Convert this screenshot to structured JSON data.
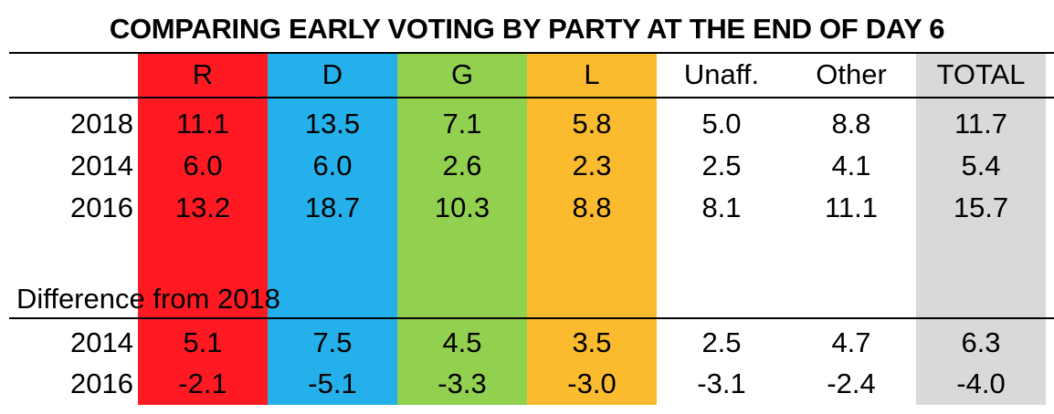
{
  "chart_data": {
    "type": "table",
    "title": "COMPARING EARLY VOTING BY PARTY AT THE END OF DAY 6",
    "columns": [
      {
        "label": "R",
        "color": "#ff1a23"
      },
      {
        "label": "D",
        "color": "#24b0ea"
      },
      {
        "label": "G",
        "color": "#92d050"
      },
      {
        "label": "L",
        "color": "#fbbb2e"
      },
      {
        "label": "Unaff.",
        "color": "#ffffff"
      },
      {
        "label": "Other",
        "color": "#ffffff"
      },
      {
        "label": "TOTAL",
        "color": "#d9d9d9"
      }
    ],
    "rows": [
      {
        "year": "2018",
        "values": [
          "11.1",
          "13.5",
          "7.1",
          "5.8",
          "5.0",
          "8.8",
          "11.7"
        ]
      },
      {
        "year": "2014",
        "values": [
          "6.0",
          "6.0",
          "2.6",
          "2.3",
          "2.5",
          "4.1",
          "5.4"
        ]
      },
      {
        "year": "2016",
        "values": [
          "13.2",
          "18.7",
          "10.3",
          "8.8",
          "8.1",
          "11.1",
          "15.7"
        ]
      }
    ],
    "difference_label": "Difference from 2018",
    "difference_rows": [
      {
        "year": "2014",
        "values": [
          "5.1",
          "7.5",
          "4.5",
          "3.5",
          "2.5",
          "4.7",
          "6.3"
        ]
      },
      {
        "year": "2016",
        "values": [
          "-2.1",
          "-5.1",
          "-3.3",
          "-3.0",
          "-3.1",
          "-2.4",
          "-4.0"
        ]
      }
    ]
  }
}
